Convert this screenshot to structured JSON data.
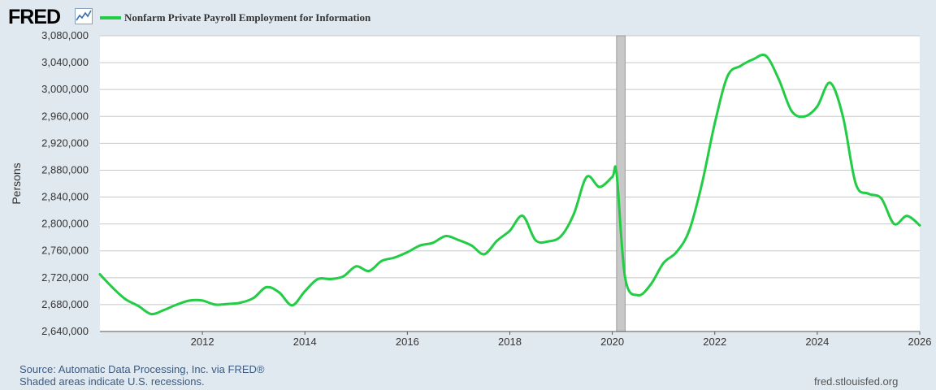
{
  "header": {
    "logo_text": "FRED",
    "logo_mark_icon": "chart-line-icon"
  },
  "colors": {
    "page_bg": "#e1e9f0",
    "plot_bg": "#ffffff",
    "series": "#22cc44",
    "grid": "#c8c8c8",
    "recession": "#c8c8c8"
  },
  "chart_data": {
    "type": "line",
    "title": "Nonfarm Private Payroll Employment for Information",
    "ylabel": "Persons",
    "xlabel": "",
    "ylim": [
      2640000,
      3080000
    ],
    "xlim": [
      "2010-01",
      "2026-01"
    ],
    "yticks": [
      "2,640,000",
      "2,680,000",
      "2,720,000",
      "2,760,000",
      "2,800,000",
      "2,840,000",
      "2,880,000",
      "2,920,000",
      "2,960,000",
      "3,000,000",
      "3,040,000",
      "3,080,000"
    ],
    "ytick_values": [
      2640000,
      2680000,
      2720000,
      2760000,
      2800000,
      2840000,
      2880000,
      2920000,
      2960000,
      3000000,
      3040000,
      3080000
    ],
    "xticks": [
      "2012",
      "2014",
      "2016",
      "2018",
      "2020",
      "2022",
      "2024",
      "2026"
    ],
    "grid": true,
    "legend": "top-left",
    "recessions": [
      {
        "start": "2020-02",
        "end": "2020-04"
      }
    ],
    "series": [
      {
        "name": "Nonfarm Private Payroll Employment for Information",
        "x": [
          "2010-01",
          "2010-04",
          "2010-07",
          "2010-10",
          "2011-01",
          "2011-04",
          "2011-07",
          "2011-10",
          "2012-01",
          "2012-04",
          "2012-07",
          "2012-10",
          "2013-01",
          "2013-04",
          "2013-07",
          "2013-10",
          "2014-01",
          "2014-04",
          "2014-07",
          "2014-10",
          "2015-01",
          "2015-04",
          "2015-07",
          "2015-10",
          "2016-01",
          "2016-04",
          "2016-07",
          "2016-10",
          "2017-01",
          "2017-04",
          "2017-07",
          "2017-10",
          "2018-01",
          "2018-04",
          "2018-07",
          "2018-10",
          "2019-01",
          "2019-04",
          "2019-07",
          "2019-10",
          "2020-01",
          "2020-02",
          "2020-04",
          "2020-07",
          "2020-10",
          "2021-01",
          "2021-04",
          "2021-07",
          "2021-10",
          "2022-01",
          "2022-04",
          "2022-07",
          "2022-10",
          "2023-01",
          "2023-04",
          "2023-07",
          "2023-10",
          "2024-01",
          "2024-04",
          "2024-07",
          "2024-10",
          "2025-01",
          "2025-04",
          "2025-07",
          "2025-10",
          "2026-01"
        ],
        "values": [
          2725000,
          2705000,
          2688000,
          2678000,
          2666000,
          2672000,
          2680000,
          2686000,
          2686000,
          2680000,
          2681000,
          2683000,
          2690000,
          2706000,
          2698000,
          2679000,
          2700000,
          2718000,
          2718000,
          2722000,
          2737000,
          2730000,
          2745000,
          2750000,
          2758000,
          2768000,
          2772000,
          2782000,
          2776000,
          2768000,
          2755000,
          2775000,
          2790000,
          2812000,
          2776000,
          2774000,
          2782000,
          2815000,
          2870000,
          2855000,
          2870000,
          2875000,
          2720000,
          2694000,
          2710000,
          2742000,
          2758000,
          2790000,
          2860000,
          2950000,
          3020000,
          3035000,
          3045000,
          3050000,
          3015000,
          2968000,
          2960000,
          2975000,
          3010000,
          2960000,
          2860000,
          2845000,
          2838000,
          2800000,
          2812000,
          2798000
        ]
      }
    ]
  },
  "footer": {
    "source": "Source: Automatic Data Processing, Inc. via FRED®",
    "shaded": "Shaded areas indicate U.S. recessions.",
    "url": "fred.stlouisfed.org"
  }
}
